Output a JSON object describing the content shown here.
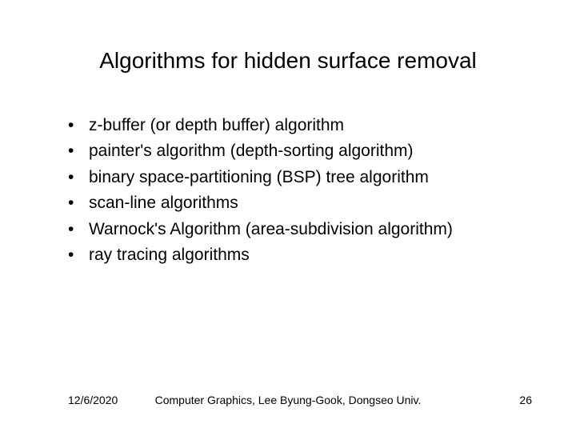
{
  "title": "Algorithms for hidden surface removal",
  "bullets": [
    "z-buffer (or depth buffer) algorithm",
    "painter's algorithm (depth-sorting algorithm)",
    "binary space-partitioning (BSP) tree algorithm",
    "scan-line algorithms",
    "Warnock's Algorithm (area-subdivision algorithm)",
    "ray tracing algorithms"
  ],
  "footer": {
    "date": "12/6/2020",
    "center": "Computer Graphics, Lee Byung-Gook, Dongseo Univ.",
    "page": "26"
  },
  "style": {
    "title_fontsize": 28,
    "bullet_fontsize": 21,
    "footer_fontsize": 14,
    "text_color": "#000000",
    "background_color": "#ffffff",
    "font_family": "Arial"
  }
}
